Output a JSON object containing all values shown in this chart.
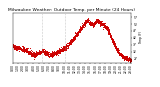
{
  "title": "Milwaukee Weather: Outdoor Temp. per Minute (24 Hours)",
  "title_fontsize": 3.2,
  "line_color": "#cc0000",
  "bg_color": "#ffffff",
  "ylabel_right_values": [
    27,
    32,
    37,
    42,
    47,
    52,
    57
  ],
  "ylim": [
    24,
    60
  ],
  "vlines": [
    0.25,
    0.44
  ],
  "vline_color": "#999999",
  "marker_size": 0.5,
  "x_tick_labels": [
    "0:00",
    "1:00",
    "2:00",
    "3:00",
    "4:00",
    "5:00",
    "6:00",
    "7:00",
    "8:00",
    "9:00",
    "10:00",
    "11:00",
    "12:00",
    "13:00",
    "14:00",
    "15:00",
    "16:00",
    "17:00",
    "18:00",
    "19:00",
    "20:00",
    "21:00",
    "22:00",
    "23:00"
  ],
  "tick_fontsize": 2.2,
  "left_label": "Temp (F)"
}
